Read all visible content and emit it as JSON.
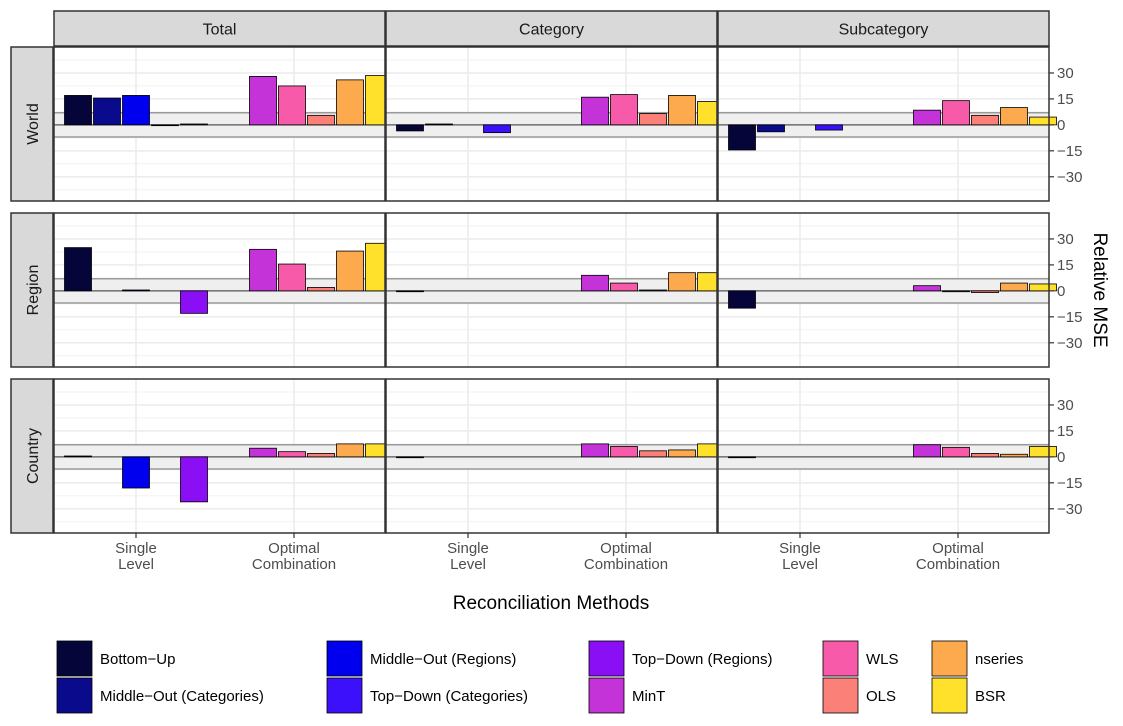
{
  "chart_data": {
    "type": "bar",
    "xlabel": "Reconciliation Methods",
    "ylabel": "Relative MSE",
    "ylim": [
      -44,
      45
    ],
    "yticks": [
      -30,
      -15,
      0,
      15,
      30
    ],
    "ytick_labels": [
      "−30",
      "−15",
      "0",
      "15",
      "30"
    ],
    "band": [
      -7,
      7
    ],
    "grid": true,
    "legend_position": "bottom",
    "columns": [
      "Total",
      "Category",
      "Subcategory"
    ],
    "rows": [
      "World",
      "Region",
      "Country"
    ],
    "group_labels": [
      [
        "Single",
        "Level"
      ],
      [
        "Optimal",
        "Combination"
      ]
    ],
    "methods": [
      {
        "name": "Bottom−Up",
        "color": "#05053a",
        "group": 0
      },
      {
        "name": "Middle−Out (Categories)",
        "color": "#0a0a8c",
        "group": 0
      },
      {
        "name": "Middle−Out (Regions)",
        "color": "#0000ee",
        "group": 0
      },
      {
        "name": "Top−Down (Categories)",
        "color": "#3d10fb",
        "group": 0
      },
      {
        "name": "Top−Down (Regions)",
        "color": "#8a0ff5",
        "group": 0
      },
      {
        "name": "MinT",
        "color": "#c433d8",
        "group": 1
      },
      {
        "name": "WLS",
        "color": "#f65aa8",
        "group": 1
      },
      {
        "name": "OLS",
        "color": "#fb8078",
        "group": 1
      },
      {
        "name": "nseries",
        "color": "#fdaa4e",
        "group": 1
      },
      {
        "name": "BSR",
        "color": "#ffe02a",
        "group": 1
      }
    ],
    "panels": [
      {
        "row": "World",
        "column": "Total",
        "values": [
          17,
          15.5,
          17,
          0,
          0.5,
          28,
          22.5,
          5.5,
          26,
          28.5
        ]
      },
      {
        "row": "World",
        "column": "Category",
        "values": [
          -3.5,
          0.5,
          null,
          -4.5,
          null,
          16,
          17.5,
          6.5,
          17,
          13.5
        ]
      },
      {
        "row": "World",
        "column": "Subcategory",
        "values": [
          -14.5,
          -4,
          null,
          -3,
          null,
          8.5,
          14,
          5.5,
          10,
          4.5
        ]
      },
      {
        "row": "Region",
        "column": "Total",
        "values": [
          25,
          null,
          0.5,
          null,
          -13,
          24,
          15.5,
          2,
          23,
          27.5
        ]
      },
      {
        "row": "Region",
        "column": "Category",
        "values": [
          -0.5,
          null,
          null,
          null,
          null,
          9,
          4.5,
          0.5,
          10.5,
          10.5
        ]
      },
      {
        "row": "Region",
        "column": "Subcategory",
        "values": [
          -10,
          null,
          null,
          null,
          null,
          3,
          -0.5,
          -1,
          4.5,
          4
        ]
      },
      {
        "row": "Country",
        "column": "Total",
        "values": [
          0.5,
          null,
          -18,
          null,
          -26,
          5,
          3,
          2,
          7.5,
          7.5
        ]
      },
      {
        "row": "Country",
        "column": "Category",
        "values": [
          -0.5,
          null,
          null,
          null,
          null,
          7.5,
          6,
          3.5,
          4,
          7.5
        ]
      },
      {
        "row": "Country",
        "column": "Subcategory",
        "values": [
          -0.5,
          null,
          null,
          null,
          null,
          7,
          5.5,
          2,
          1.5,
          6
        ]
      }
    ]
  }
}
